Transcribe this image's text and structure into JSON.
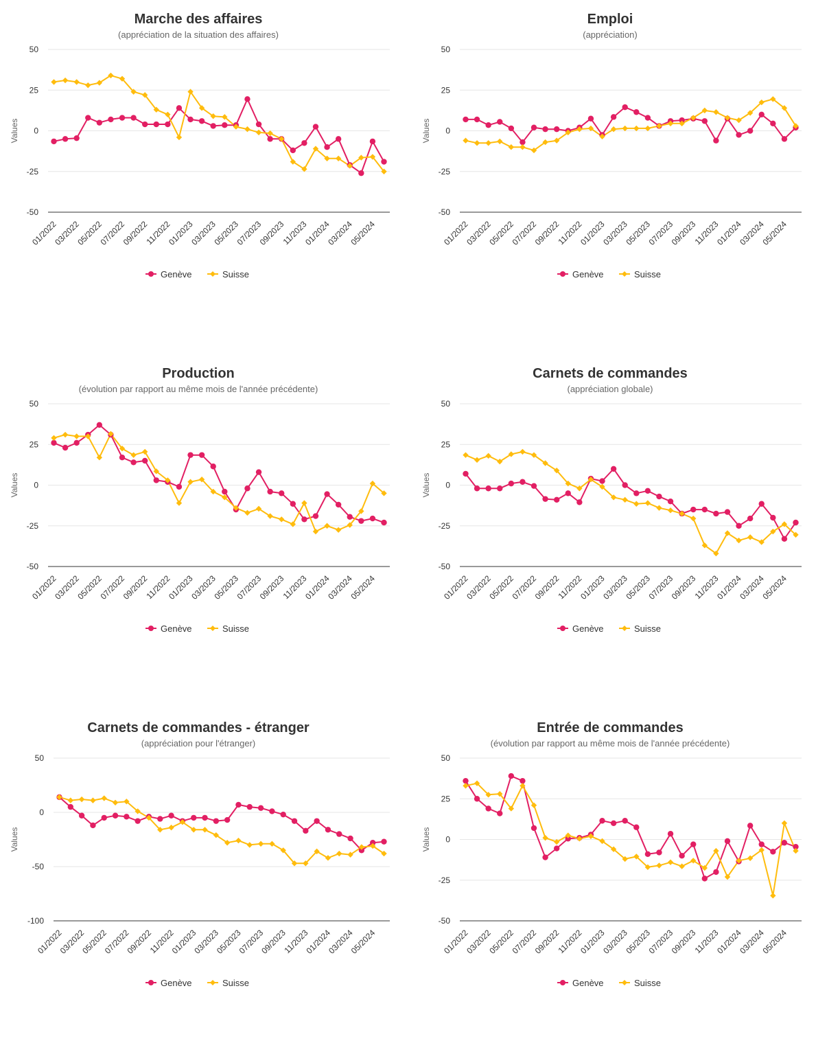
{
  "colors": {
    "geneve": "#e21f63",
    "suisse": "#ffbc0d",
    "grid": "#e6e6e6",
    "axis": "#333333"
  },
  "chart_data": [
    {
      "type": "line",
      "title": "Marche des affaires",
      "subtitle": "(appréciation de la situation des affaires)",
      "ylabel": "Values",
      "ylim": [
        -50,
        50
      ],
      "yticks": [
        50,
        25,
        0,
        -25,
        -50
      ],
      "x": [
        "01/2022",
        "02/2022",
        "03/2022",
        "04/2022",
        "05/2022",
        "06/2022",
        "07/2022",
        "08/2022",
        "09/2022",
        "10/2022",
        "11/2022",
        "12/2022",
        "01/2023",
        "02/2023",
        "03/2023",
        "04/2023",
        "05/2023",
        "06/2023",
        "07/2023",
        "08/2023",
        "09/2023",
        "10/2023",
        "11/2023",
        "12/2023",
        "01/2024",
        "02/2024",
        "03/2024",
        "04/2024",
        "05/2024",
        "06/2024"
      ],
      "xticklabels": [
        "01/2022",
        "03/2022",
        "05/2022",
        "07/2022",
        "09/2022",
        "11/2022",
        "01/2023",
        "03/2023",
        "05/2023",
        "07/2023",
        "09/2023",
        "11/2023",
        "01/2024",
        "03/2024",
        "05/2024"
      ],
      "legend": "bottom",
      "series": [
        {
          "name": "Genève",
          "marker": "circle",
          "values": [
            -6.5,
            -5,
            -4.5,
            8,
            5,
            7,
            8,
            8,
            4,
            4,
            4,
            14,
            7,
            6,
            3,
            3.5,
            3.5,
            19.5,
            4,
            -5,
            -5,
            -12,
            -7.5,
            2.5,
            -10,
            -5,
            -21,
            -26,
            -6.5,
            -19
          ]
        },
        {
          "name": "Suisse",
          "marker": "diamond",
          "values": [
            30,
            31,
            30,
            28,
            29.5,
            34,
            32,
            24,
            22,
            13,
            10,
            -4,
            24,
            14,
            9,
            8.5,
            2.5,
            1,
            -1,
            -1.5,
            -5,
            -19,
            -23.5,
            -11,
            -17,
            -17,
            -21.5,
            -16.5,
            -16,
            -25
          ]
        }
      ]
    },
    {
      "type": "line",
      "title": "Emploi",
      "subtitle": "(appréciation)",
      "ylabel": "Values",
      "ylim": [
        -50,
        50
      ],
      "yticks": [
        50,
        25,
        0,
        -25,
        -50
      ],
      "x": [
        "01/2022",
        "02/2022",
        "03/2022",
        "04/2022",
        "05/2022",
        "06/2022",
        "07/2022",
        "08/2022",
        "09/2022",
        "10/2022",
        "11/2022",
        "12/2022",
        "01/2023",
        "02/2023",
        "03/2023",
        "04/2023",
        "05/2023",
        "06/2023",
        "07/2023",
        "08/2023",
        "09/2023",
        "10/2023",
        "11/2023",
        "12/2023",
        "01/2024",
        "02/2024",
        "03/2024",
        "04/2024",
        "05/2024",
        "06/2024"
      ],
      "xticklabels": [
        "01/2022",
        "03/2022",
        "05/2022",
        "07/2022",
        "09/2022",
        "11/2022",
        "01/2023",
        "03/2023",
        "05/2023",
        "07/2023",
        "09/2023",
        "11/2023",
        "01/2024",
        "03/2024",
        "05/2024"
      ],
      "legend": "bottom",
      "series": [
        {
          "name": "Genève",
          "marker": "circle",
          "values": [
            7,
            7,
            3.5,
            5.5,
            1.5,
            -7,
            2,
            1,
            1,
            0,
            2,
            7.5,
            -2.5,
            8.5,
            14.5,
            11.5,
            8,
            3,
            6,
            6.5,
            7.5,
            6,
            -6,
            7.5,
            -2.5,
            0,
            10,
            4.5,
            -5,
            2
          ]
        },
        {
          "name": "Suisse",
          "marker": "diamond",
          "values": [
            -6,
            -7.5,
            -7.5,
            -6.5,
            -10,
            -10,
            -12,
            -7,
            -6,
            -1,
            1,
            1.5,
            -3.5,
            1,
            1.5,
            1.5,
            1.5,
            3,
            4.5,
            4.5,
            8,
            12.5,
            11.5,
            8,
            6.5,
            11,
            17.5,
            19.5,
            14,
            3
          ]
        }
      ]
    },
    {
      "type": "line",
      "title": "Production",
      "subtitle": "(évolution par rapport au même mois de l'année précédente)",
      "ylabel": "Values",
      "ylim": [
        -50,
        50
      ],
      "yticks": [
        50,
        25,
        0,
        -25,
        -50
      ],
      "x": [
        "01/2022",
        "02/2022",
        "03/2022",
        "04/2022",
        "05/2022",
        "06/2022",
        "07/2022",
        "08/2022",
        "09/2022",
        "10/2022",
        "11/2022",
        "12/2022",
        "01/2023",
        "02/2023",
        "03/2023",
        "04/2023",
        "05/2023",
        "06/2023",
        "07/2023",
        "08/2023",
        "09/2023",
        "10/2023",
        "11/2023",
        "12/2023",
        "01/2024",
        "02/2024",
        "03/2024",
        "04/2024",
        "05/2024",
        "06/2024"
      ],
      "xticklabels": [
        "01/2022",
        "03/2022",
        "05/2022",
        "07/2022",
        "09/2022",
        "11/2022",
        "01/2023",
        "03/2023",
        "05/2023",
        "07/2023",
        "09/2023",
        "11/2023",
        "01/2024",
        "03/2024",
        "05/2024"
      ],
      "legend": "bottom",
      "series": [
        {
          "name": "Genève",
          "marker": "circle",
          "values": [
            26,
            23,
            26,
            31,
            37,
            31,
            17,
            14,
            15,
            3,
            2,
            -1,
            18.5,
            18.5,
            11.5,
            -4,
            -15,
            -2,
            8,
            -4,
            -5,
            -11.5,
            -21,
            -19,
            -5.5,
            -12,
            -19.5,
            -22,
            -20.5,
            -23
          ]
        },
        {
          "name": "Suisse",
          "marker": "diamond",
          "values": [
            29,
            31,
            30,
            30,
            17,
            31.5,
            22.5,
            18.5,
            20.5,
            8.5,
            3,
            -11,
            2,
            3.5,
            -4,
            -7.5,
            -14,
            -17,
            -14.5,
            -19,
            -21,
            -24,
            -11,
            -28.5,
            -25,
            -27.5,
            -24.5,
            -16,
            1,
            -5
          ]
        }
      ]
    },
    {
      "type": "line",
      "title": "Carnets de commandes",
      "subtitle": "(appréciation globale)",
      "ylabel": "Values",
      "ylim": [
        -50,
        50
      ],
      "yticks": [
        50,
        25,
        0,
        -25,
        -50
      ],
      "x": [
        "01/2022",
        "02/2022",
        "03/2022",
        "04/2022",
        "05/2022",
        "06/2022",
        "07/2022",
        "08/2022",
        "09/2022",
        "10/2022",
        "11/2022",
        "12/2022",
        "01/2023",
        "02/2023",
        "03/2023",
        "04/2023",
        "05/2023",
        "06/2023",
        "07/2023",
        "08/2023",
        "09/2023",
        "10/2023",
        "11/2023",
        "12/2023",
        "01/2024",
        "02/2024",
        "03/2024",
        "04/2024",
        "05/2024",
        "06/2024"
      ],
      "xticklabels": [
        "01/2022",
        "03/2022",
        "05/2022",
        "07/2022",
        "09/2022",
        "11/2022",
        "01/2023",
        "03/2023",
        "05/2023",
        "07/2023",
        "09/2023",
        "11/2023",
        "01/2024",
        "03/2024",
        "05/2024"
      ],
      "legend": "bottom",
      "series": [
        {
          "name": "Genève",
          "marker": "circle",
          "values": [
            7,
            -2,
            -2,
            -2,
            1,
            2,
            -0.5,
            -8.5,
            -9,
            -5,
            -10.5,
            4,
            2.5,
            10,
            0,
            -5,
            -3.5,
            -7,
            -10,
            -17.5,
            -15,
            -15,
            -17.5,
            -16.5,
            -25,
            -20.5,
            -11.5,
            -20,
            -33,
            -23
          ]
        },
        {
          "name": "Suisse",
          "marker": "diamond",
          "values": [
            18.5,
            15.5,
            18,
            14.5,
            19,
            20.5,
            18.5,
            13.5,
            9,
            1,
            -2,
            3.5,
            -1,
            -7.5,
            -9,
            -11.5,
            -11,
            -14,
            -15.5,
            -17.5,
            -20.5,
            -37,
            -42,
            -29.5,
            -34,
            -32,
            -35,
            -28.5,
            -24,
            -30.5
          ]
        }
      ]
    },
    {
      "type": "line",
      "title": "Carnets de commandes - étranger",
      "subtitle": "(appréciation pour l'étranger)",
      "ylabel": "Values",
      "ylim": [
        -100,
        50
      ],
      "yticks": [
        50,
        0,
        -50,
        -100
      ],
      "x": [
        "01/2022",
        "02/2022",
        "03/2022",
        "04/2022",
        "05/2022",
        "06/2022",
        "07/2022",
        "08/2022",
        "09/2022",
        "10/2022",
        "11/2022",
        "12/2022",
        "01/2023",
        "02/2023",
        "03/2023",
        "04/2023",
        "05/2023",
        "06/2023",
        "07/2023",
        "08/2023",
        "09/2023",
        "10/2023",
        "11/2023",
        "12/2023",
        "01/2024",
        "02/2024",
        "03/2024",
        "04/2024",
        "05/2024",
        "06/2024"
      ],
      "xticklabels": [
        "01/2022",
        "03/2022",
        "05/2022",
        "07/2022",
        "09/2022",
        "11/2022",
        "01/2023",
        "03/2023",
        "05/2023",
        "07/2023",
        "09/2023",
        "11/2023",
        "01/2024",
        "03/2024",
        "05/2024"
      ],
      "legend": "bottom",
      "series": [
        {
          "name": "Genève",
          "marker": "circle",
          "values": [
            14,
            5,
            -3,
            -12,
            -5,
            -3,
            -4,
            -8,
            -4,
            -6,
            -3,
            -8,
            -5,
            -5,
            -8,
            -7,
            7,
            5,
            4,
            1,
            -2,
            -8,
            -17,
            -8,
            -16,
            -20,
            -24,
            -35,
            -28,
            -27
          ]
        },
        {
          "name": "Suisse",
          "marker": "diamond",
          "values": [
            14,
            11,
            12,
            11,
            13,
            9,
            10,
            1,
            -5,
            -16,
            -14,
            -9,
            -16,
            -16,
            -21,
            -28,
            -26,
            -30,
            -29,
            -29,
            -35,
            -47,
            -47,
            -36,
            -42,
            -38,
            -39,
            -32,
            -31,
            -38
          ]
        }
      ]
    },
    {
      "type": "line",
      "title": "Entrée de commandes",
      "subtitle": "(évolution par rapport au même mois de l'année précédente)",
      "ylabel": "Values",
      "ylim": [
        -50,
        50
      ],
      "yticks": [
        50,
        25,
        0,
        -25,
        -50
      ],
      "x": [
        "01/2022",
        "02/2022",
        "03/2022",
        "04/2022",
        "05/2022",
        "06/2022",
        "07/2022",
        "08/2022",
        "09/2022",
        "10/2022",
        "11/2022",
        "12/2022",
        "01/2023",
        "02/2023",
        "03/2023",
        "04/2023",
        "05/2023",
        "06/2023",
        "07/2023",
        "08/2023",
        "09/2023",
        "10/2023",
        "11/2023",
        "12/2023",
        "01/2024",
        "02/2024",
        "03/2024",
        "04/2024",
        "05/2024",
        "06/2024"
      ],
      "xticklabels": [
        "01/2022",
        "03/2022",
        "05/2022",
        "07/2022",
        "09/2022",
        "11/2022",
        "01/2023",
        "03/2023",
        "05/2023",
        "07/2023",
        "09/2023",
        "11/2023",
        "01/2024",
        "03/2024",
        "05/2024"
      ],
      "legend": "bottom",
      "series": [
        {
          "name": "Genève",
          "marker": "circle",
          "values": [
            36,
            25,
            19,
            16,
            39,
            36,
            7,
            -11,
            -5.5,
            0.5,
            1,
            3,
            11.5,
            10,
            11.5,
            7.5,
            -9,
            -8,
            3.5,
            -10,
            -3,
            -24,
            -20,
            -1,
            -13.5,
            8.5,
            -3,
            -7.5,
            -2,
            -4.5
          ]
        },
        {
          "name": "Suisse",
          "marker": "diamond",
          "values": [
            33,
            34.5,
            27.5,
            28,
            19,
            33,
            21,
            1,
            -1.5,
            2.5,
            0.5,
            2,
            -1,
            -6,
            -12,
            -10.5,
            -17,
            -16,
            -14,
            -16.5,
            -13,
            -17.5,
            -7,
            -23,
            -13,
            -11.5,
            -6.5,
            -34.5,
            10,
            -7
          ]
        }
      ]
    }
  ]
}
